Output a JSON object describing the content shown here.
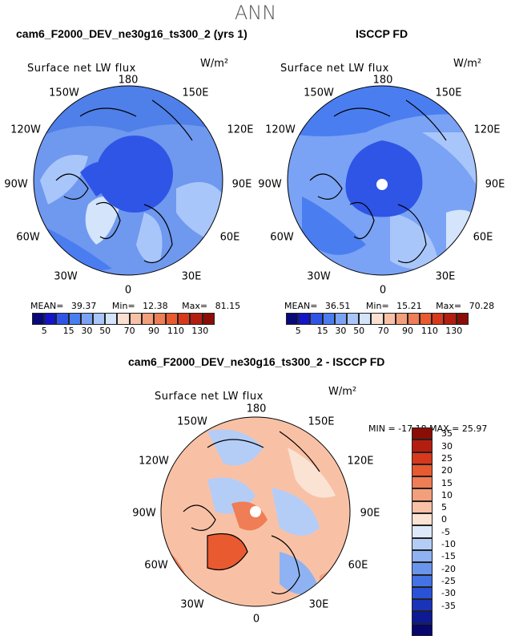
{
  "page_title": "ANN",
  "panels": [
    {
      "title": "cam6_F2000_DEV_ne30g16_ts300_2 (yrs 1)",
      "map_title": "Surface net LW flux",
      "units": "W/m²",
      "lon_labels": [
        "180",
        "150E",
        "120E",
        "90E",
        "60E",
        "30E",
        "0",
        "30W",
        "60W",
        "90W",
        "120W",
        "150W"
      ],
      "stats": {
        "mean_label": "MEAN=",
        "mean": "39.37",
        "min_label": "Min=",
        "min": "12.38",
        "max_label": "Max=",
        "max": "81.15"
      }
    },
    {
      "title": "ISCCP FD",
      "map_title": "Surface net LW flux",
      "units": "W/m²",
      "lon_labels": [
        "180",
        "150E",
        "120E",
        "90E",
        "60E",
        "30E",
        "0",
        "30W",
        "60W",
        "90W",
        "120W",
        "150W"
      ],
      "stats": {
        "mean_label": "MEAN=",
        "mean": "36.51",
        "min_label": "Min=",
        "min": "15.21",
        "max_label": "Max=",
        "max": "70.28"
      }
    },
    {
      "title": "cam6_F2000_DEV_ne30g16_ts300_2 - ISCCP FD",
      "map_title": "Surface net LW flux",
      "units": "W/m²",
      "lon_labels": [
        "180",
        "150E",
        "120E",
        "90E",
        "60E",
        "30E",
        "0",
        "30W",
        "60W",
        "90W",
        "120W",
        "150W"
      ],
      "stats_text": "MIN = -17.18  MAX =  25.97"
    }
  ],
  "colorbar_abs": {
    "colors": [
      "#08087a",
      "#1414c8",
      "#2f55e6",
      "#4a7ef0",
      "#7aa3f5",
      "#a9c6fa",
      "#d3e4fb",
      "#f9e0d2",
      "#f8c1a6",
      "#f39f7c",
      "#ef7d55",
      "#e95a30",
      "#d8391d",
      "#b41e10",
      "#8a0e06"
    ],
    "labels": [
      "5",
      "15",
      "30",
      "50",
      "70",
      "90",
      "110",
      "130"
    ]
  },
  "colorbar_diff": {
    "colors": [
      "#8a0e06",
      "#b41e10",
      "#d8391d",
      "#e95a30",
      "#ef7d55",
      "#f39f7c",
      "#f8c1a6",
      "#fbe3d4",
      "#dde9fb",
      "#b4cdf7",
      "#8fb2f2",
      "#6a95ed",
      "#4373e4",
      "#2a52d6",
      "#1a33b8",
      "#0d1a94",
      "#06066e"
    ],
    "labels": [
      "35",
      "30",
      "25",
      "20",
      "15",
      "10",
      "5",
      "0",
      "-5",
      "-10",
      "-15",
      "-20",
      "-25",
      "-30",
      "-35"
    ]
  }
}
